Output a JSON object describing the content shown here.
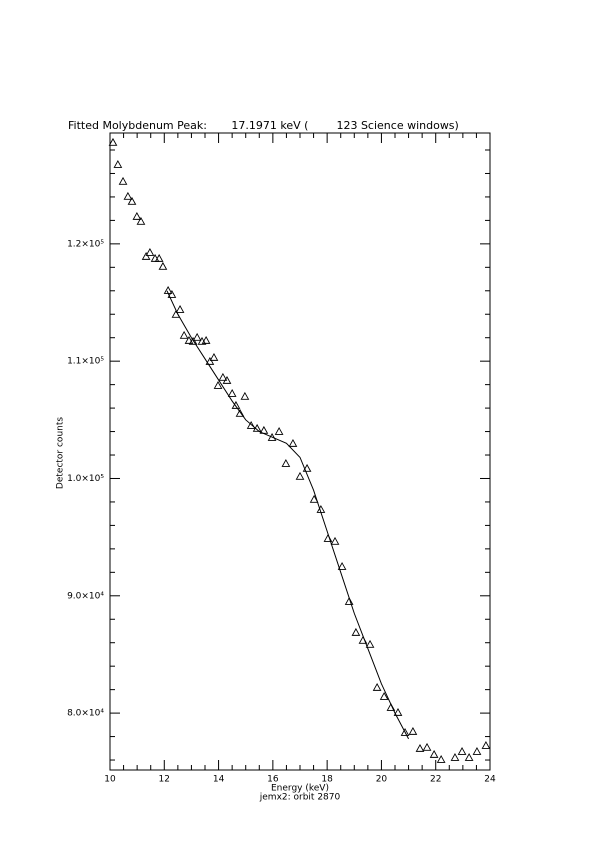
{
  "chart_data": {
    "type": "scatter",
    "title": "Fitted Molybdenum Peak:       17.1971 keV (        123 Science windows)",
    "x_label": "Energy (keV)",
    "subtitle": "jemx2: orbit 2870",
    "y_label": "Detector counts",
    "xlim": [
      10,
      24
    ],
    "xticks": [
      10,
      12,
      14,
      16,
      18,
      20,
      22,
      24
    ],
    "ylim": [
      75150,
      129450
    ],
    "yticks": [
      {
        "value": 80000,
        "label": "8.0×10⁴"
      },
      {
        "value": 90000,
        "label": "9.0×10⁴"
      },
      {
        "value": 100000,
        "label": "1.0×10⁵"
      },
      {
        "value": 110000,
        "label": "1.1×10⁵"
      },
      {
        "value": 120000,
        "label": "1.2×10⁵"
      }
    ],
    "series": [
      {
        "mark": "triangle",
        "color": "#000000",
        "x": [
          10.11,
          10.29,
          10.48,
          10.66,
          10.81,
          10.99,
          11.14,
          11.33,
          11.47,
          11.66,
          11.81,
          11.95,
          12.14,
          12.28,
          12.43,
          12.58,
          12.73,
          12.91,
          13.06,
          13.21,
          13.39,
          13.54,
          13.68,
          13.83,
          13.98,
          14.16,
          14.31,
          14.5,
          14.64,
          14.79,
          14.97,
          15.2,
          15.42,
          15.67,
          15.97,
          16.23,
          16.48,
          16.74,
          17.0,
          17.26,
          17.52,
          17.77,
          18.03,
          18.29,
          18.55,
          18.81,
          19.06,
          19.32,
          19.58,
          19.84,
          20.1,
          20.35,
          20.61,
          20.87,
          21.16,
          21.42,
          21.68,
          21.94,
          22.2,
          22.71,
          22.97,
          23.23,
          23.52,
          23.85
        ],
        "values": [
          128610,
          126730,
          125290,
          124010,
          123580,
          122300,
          121880,
          118890,
          119230,
          118720,
          118720,
          118040,
          115990,
          115650,
          113950,
          114370,
          112160,
          111730,
          111650,
          111990,
          111650,
          111730,
          109940,
          110280,
          107890,
          108580,
          108320,
          107210,
          106190,
          105510,
          106960,
          104480,
          104230,
          104060,
          103460,
          103970,
          101240,
          102950,
          100140,
          100820,
          98180,
          97320,
          94850,
          94600,
          92460,
          89480,
          86840,
          86160,
          85820,
          82150,
          81380,
          80440,
          80020,
          78310,
          78400,
          76950,
          77040,
          76440,
          76010,
          76180,
          76690,
          76180,
          76690,
          77200
        ]
      },
      {
        "mark": "line",
        "color": "#000000",
        "x": [
          12.1,
          12.5,
          13,
          13.5,
          14,
          14.5,
          15,
          15.5,
          16,
          16.5,
          17,
          17.5,
          18,
          18.5,
          19,
          19.5,
          20,
          20.5,
          21
        ],
        "values": [
          116000,
          114000,
          112000,
          110200,
          108400,
          106600,
          105000,
          104000,
          103500,
          103000,
          101800,
          99000,
          95500,
          92000,
          88500,
          85500,
          82500,
          80000,
          77800
        ]
      }
    ]
  }
}
